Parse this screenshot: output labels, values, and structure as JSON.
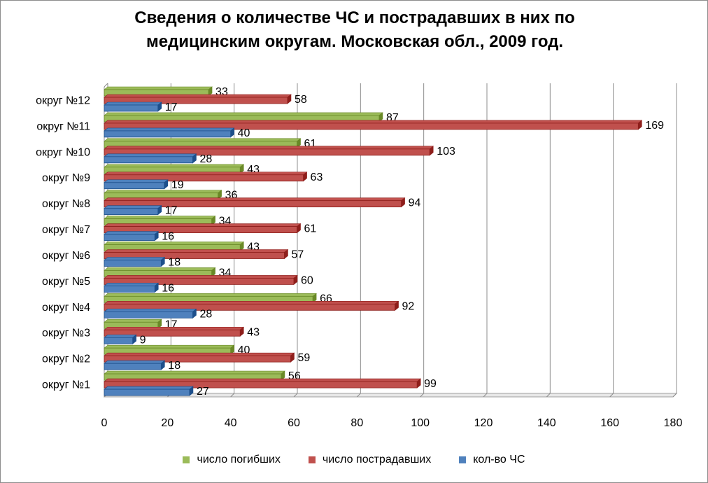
{
  "chart_data": {
    "type": "bar",
    "orientation": "horizontal",
    "title": "Сведения о количестве ЧС и пострадавших в них по\nмедицинским округам. Московская обл., 2009 год.",
    "categories": [
      "округ №1",
      "округ №2",
      "округ №3",
      "округ №4",
      "округ №5",
      "округ №6",
      "округ №7",
      "округ №8",
      "округ №9",
      "округ №10",
      "округ №11",
      "округ №12"
    ],
    "series": [
      {
        "name": "число погибших",
        "color": "#9bbb59",
        "values": [
          56,
          40,
          17,
          66,
          34,
          43,
          34,
          36,
          43,
          61,
          87,
          33
        ]
      },
      {
        "name": "число пострадавших",
        "color": "#c0504d",
        "values": [
          99,
          59,
          43,
          92,
          60,
          57,
          61,
          94,
          63,
          103,
          169,
          58
        ]
      },
      {
        "name": "кол-во ЧС",
        "color": "#4f81bd",
        "values": [
          27,
          18,
          9,
          28,
          16,
          18,
          16,
          17,
          19,
          28,
          40,
          17
        ]
      }
    ],
    "xlim": [
      0,
      180
    ],
    "xticks": [
      0,
      20,
      40,
      60,
      80,
      100,
      120,
      140,
      160,
      180
    ],
    "grid": true,
    "legend_position": "bottom",
    "legend_order": [
      "число погибших",
      "число пострадавших",
      "кол-во ЧС"
    ]
  }
}
